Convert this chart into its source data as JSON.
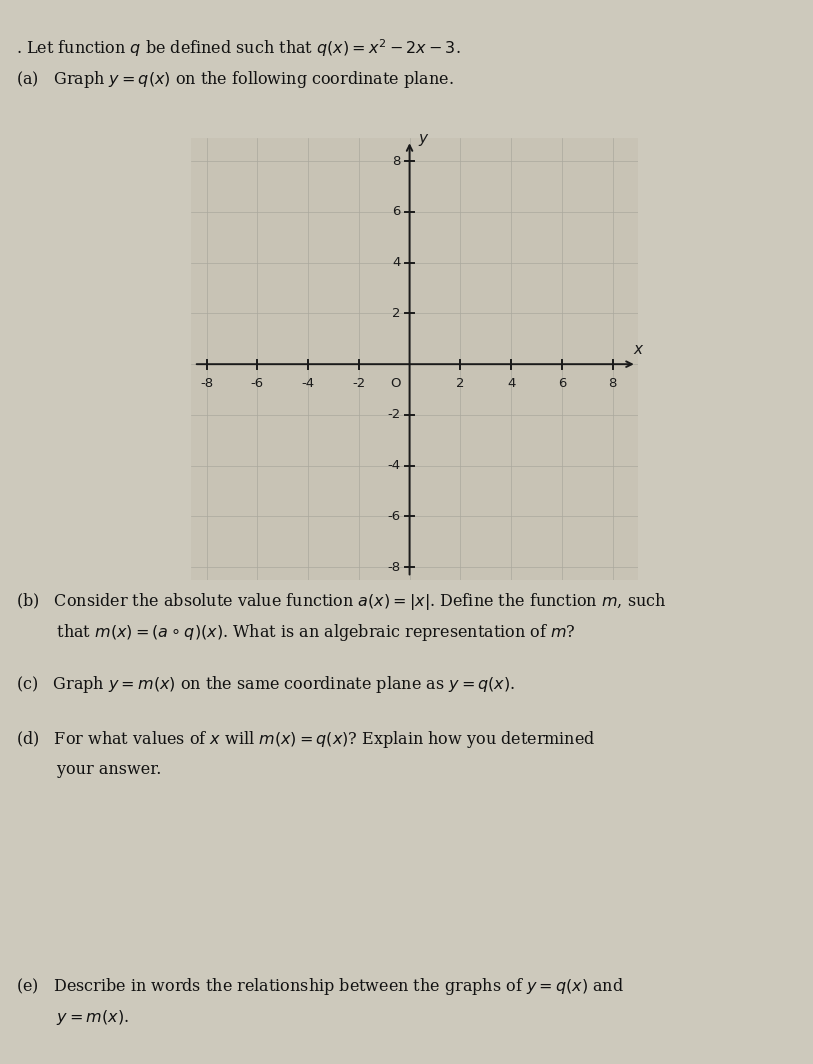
{
  "title_line1": ". Let function $q$ be defined such that $q(x) = x^2 - 2x - 3$.",
  "part_a": "(a)   Graph $y = q(x)$ on the following coordinate plane.",
  "part_b_line1": "(b)   Consider the absolute value function $a(x) = |x|$. Define the function $m$, such",
  "part_b_line2": "        that $m(x) = (a \\circ q)(x)$. What is an algebraic representation of $m$?",
  "part_c": "(c)   Graph $y = m(x)$ on the same coordinate plane as $y = q(x)$.",
  "part_d_line1": "(d)   For what values of $x$ will $m(x) = q(x)$? Explain how you determined",
  "part_d_line2": "        your answer.",
  "part_e_line1": "(e)   Describe in words the relationship between the graphs of $y = q(x)$ and",
  "part_e_line2": "        $y = m(x)$.",
  "xmin": -8,
  "xmax": 8,
  "ymin": -8,
  "ymax": 8,
  "xticks": [
    -8,
    -6,
    -4,
    -2,
    2,
    4,
    6,
    8
  ],
  "yticks": [
    -8,
    -6,
    -4,
    -2,
    2,
    4,
    6,
    8
  ],
  "xlabel": "x",
  "ylabel": "y",
  "background_color": "#cdc9bc",
  "axis_color": "#1a1a1a",
  "grid_color": "#aaa89e",
  "text_color": "#111111",
  "plot_bg": "#c8c3b5"
}
